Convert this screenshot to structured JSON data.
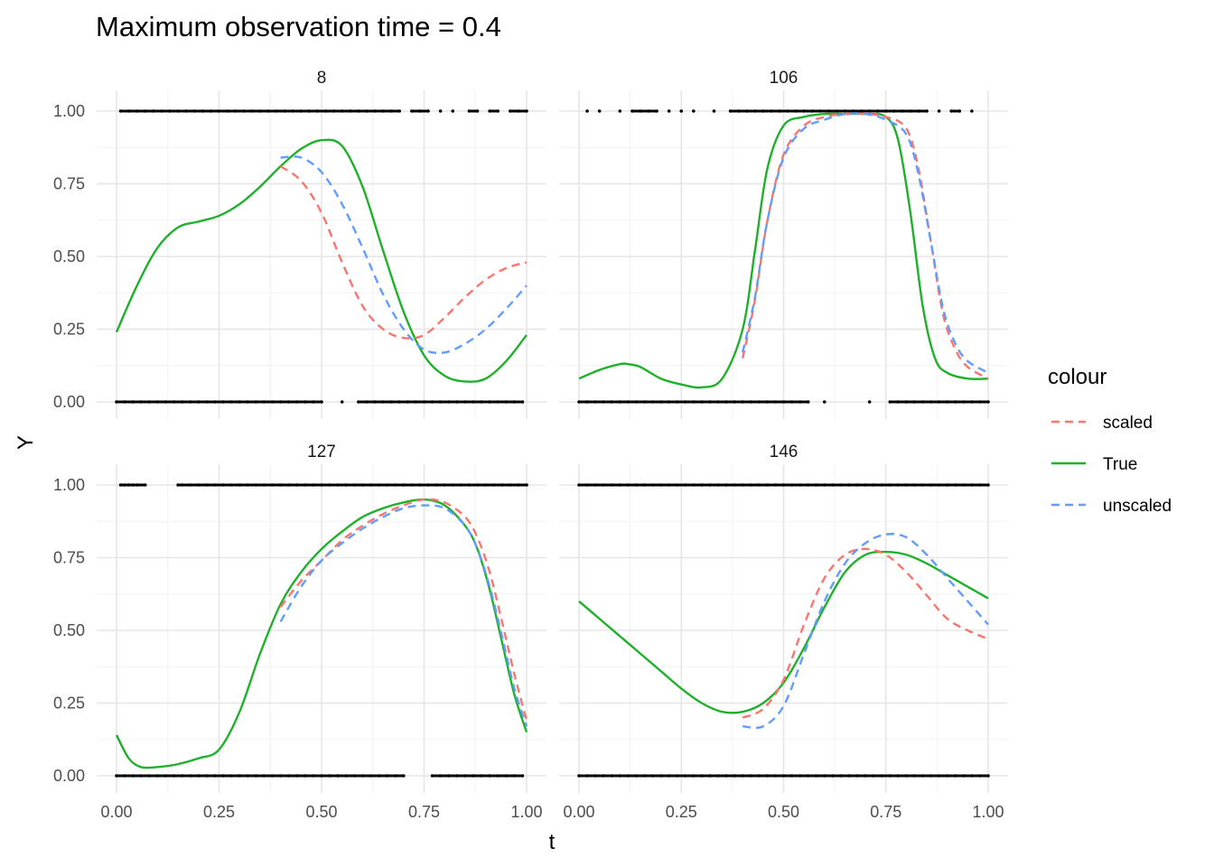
{
  "chart_data": {
    "type": "line",
    "title": "Maximum observation time = 0.4",
    "xlabel": "t",
    "ylabel": "Y",
    "xlim": [
      0,
      1
    ],
    "ylim": [
      0,
      1
    ],
    "x_ticks": [
      "0.00",
      "0.25",
      "0.50",
      "0.75",
      "1.00"
    ],
    "y_ticks": [
      "0.00",
      "0.25",
      "0.50",
      "0.75",
      "1.00"
    ],
    "grid": true,
    "legend": {
      "title": "colour",
      "position": "right",
      "items": [
        {
          "label": "scaled",
          "color": "#F8766D",
          "dash": "dashed"
        },
        {
          "label": "True",
          "color": "#1FB02C",
          "dash": "solid"
        },
        {
          "label": "unscaled",
          "color": "#619CFF",
          "dash": "dashed"
        }
      ]
    },
    "panels": [
      {
        "label": "8",
        "series": [
          {
            "name": "True",
            "x": [
              0,
              0.05,
              0.1,
              0.15,
              0.2,
              0.25,
              0.3,
              0.35,
              0.4,
              0.45,
              0.5,
              0.55,
              0.6,
              0.65,
              0.7,
              0.75,
              0.8,
              0.85,
              0.9,
              0.95,
              1.0
            ],
            "y": [
              0.24,
              0.4,
              0.53,
              0.6,
              0.62,
              0.64,
              0.68,
              0.74,
              0.81,
              0.87,
              0.9,
              0.88,
              0.74,
              0.52,
              0.31,
              0.16,
              0.09,
              0.07,
              0.08,
              0.14,
              0.23
            ]
          },
          {
            "name": "scaled",
            "x": [
              0.4,
              0.45,
              0.5,
              0.55,
              0.6,
              0.65,
              0.7,
              0.75,
              0.8,
              0.85,
              0.9,
              0.95,
              1.0
            ],
            "y": [
              0.81,
              0.76,
              0.65,
              0.48,
              0.33,
              0.25,
              0.22,
              0.23,
              0.29,
              0.36,
              0.42,
              0.46,
              0.48
            ]
          },
          {
            "name": "unscaled",
            "x": [
              0.4,
              0.45,
              0.5,
              0.55,
              0.6,
              0.65,
              0.7,
              0.75,
              0.8,
              0.85,
              0.9,
              0.95,
              1.0
            ],
            "y": [
              0.84,
              0.84,
              0.79,
              0.68,
              0.53,
              0.37,
              0.25,
              0.18,
              0.17,
              0.2,
              0.25,
              0.32,
              0.4
            ]
          }
        ],
        "points_y1": [
          0.01,
          0.03,
          0.05,
          0.07,
          0.09,
          0.11,
          0.13,
          0.15,
          0.17,
          0.19,
          0.21,
          0.23,
          0.25,
          0.27,
          0.29,
          0.31,
          0.33,
          0.35,
          0.37,
          0.39,
          0.41,
          0.43,
          0.45,
          0.47,
          0.49,
          0.51,
          0.53,
          0.55,
          0.57,
          0.59,
          0.61,
          0.63,
          0.65,
          0.67,
          0.69,
          0.72,
          0.74,
          0.76,
          0.79,
          0.82,
          0.86,
          0.88,
          0.91,
          0.93,
          0.96,
          0.98,
          1.0
        ],
        "points_y0": [
          0.0,
          0.02,
          0.04,
          0.06,
          0.08,
          0.1,
          0.12,
          0.14,
          0.16,
          0.18,
          0.2,
          0.22,
          0.24,
          0.26,
          0.28,
          0.3,
          0.32,
          0.34,
          0.36,
          0.38,
          0.4,
          0.42,
          0.44,
          0.46,
          0.48,
          0.5,
          0.55,
          0.59,
          0.61,
          0.63,
          0.65,
          0.67,
          0.69,
          0.71,
          0.73,
          0.75,
          0.77,
          0.79,
          0.81,
          0.83,
          0.85,
          0.87,
          0.89,
          0.91,
          0.93,
          0.95,
          0.97,
          0.99
        ]
      },
      {
        "label": "106",
        "series": [
          {
            "name": "True",
            "x": [
              0,
              0.05,
              0.1,
              0.12,
              0.15,
              0.2,
              0.25,
              0.3,
              0.35,
              0.4,
              0.43,
              0.46,
              0.5,
              0.55,
              0.6,
              0.65,
              0.7,
              0.75,
              0.78,
              0.81,
              0.84,
              0.87,
              0.9,
              0.95,
              1.0
            ],
            "y": [
              0.08,
              0.11,
              0.13,
              0.13,
              0.12,
              0.08,
              0.06,
              0.05,
              0.08,
              0.25,
              0.52,
              0.8,
              0.95,
              0.98,
              0.99,
              0.99,
              0.99,
              0.98,
              0.9,
              0.65,
              0.33,
              0.15,
              0.1,
              0.08,
              0.08
            ]
          },
          {
            "name": "scaled",
            "x": [
              0.4,
              0.43,
              0.46,
              0.5,
              0.55,
              0.6,
              0.65,
              0.7,
              0.75,
              0.8,
              0.83,
              0.86,
              0.89,
              0.92,
              0.95,
              1.0
            ],
            "y": [
              0.15,
              0.35,
              0.62,
              0.85,
              0.95,
              0.98,
              0.99,
              0.99,
              0.98,
              0.94,
              0.8,
              0.55,
              0.3,
              0.18,
              0.12,
              0.08
            ]
          },
          {
            "name": "unscaled",
            "x": [
              0.4,
              0.43,
              0.46,
              0.5,
              0.55,
              0.6,
              0.65,
              0.7,
              0.75,
              0.8,
              0.83,
              0.86,
              0.89,
              0.92,
              0.95,
              1.0
            ],
            "y": [
              0.17,
              0.36,
              0.62,
              0.84,
              0.94,
              0.97,
              0.99,
              0.99,
              0.97,
              0.92,
              0.78,
              0.55,
              0.32,
              0.2,
              0.14,
              0.1
            ]
          }
        ],
        "points_y1": [
          0.02,
          0.05,
          0.1,
          0.13,
          0.15,
          0.17,
          0.19,
          0.22,
          0.25,
          0.28,
          0.33,
          0.37,
          0.39,
          0.41,
          0.43,
          0.45,
          0.47,
          0.49,
          0.51,
          0.53,
          0.55,
          0.57,
          0.59,
          0.61,
          0.63,
          0.65,
          0.67,
          0.69,
          0.71,
          0.73,
          0.75,
          0.77,
          0.79,
          0.81,
          0.83,
          0.85,
          0.88,
          0.91,
          0.93,
          0.96
        ],
        "points_y0": [
          0.0,
          0.02,
          0.04,
          0.06,
          0.08,
          0.1,
          0.12,
          0.14,
          0.16,
          0.18,
          0.2,
          0.22,
          0.24,
          0.26,
          0.28,
          0.3,
          0.32,
          0.34,
          0.36,
          0.38,
          0.4,
          0.42,
          0.44,
          0.46,
          0.48,
          0.5,
          0.52,
          0.54,
          0.56,
          0.6,
          0.71,
          0.76,
          0.78,
          0.8,
          0.82,
          0.84,
          0.86,
          0.88,
          0.9,
          0.92,
          0.94,
          0.96,
          0.98,
          1.0
        ]
      },
      {
        "label": "127",
        "series": [
          {
            "name": "True",
            "x": [
              0,
              0.03,
              0.06,
              0.1,
              0.15,
              0.2,
              0.25,
              0.3,
              0.35,
              0.4,
              0.45,
              0.5,
              0.55,
              0.6,
              0.65,
              0.7,
              0.75,
              0.8,
              0.85,
              0.88,
              0.91,
              0.94,
              0.97,
              1.0
            ],
            "y": [
              0.14,
              0.06,
              0.03,
              0.03,
              0.04,
              0.06,
              0.09,
              0.22,
              0.42,
              0.59,
              0.7,
              0.78,
              0.84,
              0.89,
              0.92,
              0.94,
              0.95,
              0.93,
              0.86,
              0.78,
              0.64,
              0.46,
              0.28,
              0.15
            ]
          },
          {
            "name": "scaled",
            "x": [
              0.4,
              0.45,
              0.5,
              0.55,
              0.6,
              0.65,
              0.7,
              0.75,
              0.8,
              0.85,
              0.88,
              0.91,
              0.94,
              0.97,
              1.0
            ],
            "y": [
              0.58,
              0.67,
              0.74,
              0.81,
              0.86,
              0.9,
              0.93,
              0.95,
              0.94,
              0.89,
              0.82,
              0.7,
              0.53,
              0.35,
              0.19
            ]
          },
          {
            "name": "unscaled",
            "x": [
              0.4,
              0.45,
              0.5,
              0.55,
              0.6,
              0.65,
              0.7,
              0.75,
              0.8,
              0.85,
              0.88,
              0.91,
              0.94,
              0.97,
              1.0
            ],
            "y": [
              0.53,
              0.65,
              0.74,
              0.8,
              0.85,
              0.89,
              0.92,
              0.93,
              0.92,
              0.86,
              0.78,
              0.65,
              0.48,
              0.3,
              0.17
            ]
          }
        ],
        "points_y1": [
          0.01,
          0.02,
          0.03,
          0.04,
          0.05,
          0.07,
          0.15,
          0.16,
          0.18,
          0.2,
          0.22,
          0.24,
          0.26,
          0.28,
          0.3,
          0.32,
          0.34,
          0.36,
          0.38,
          0.4,
          0.42,
          0.44,
          0.46,
          0.48,
          0.5,
          0.52,
          0.54,
          0.56,
          0.58,
          0.6,
          0.62,
          0.64,
          0.66,
          0.68,
          0.7,
          0.72,
          0.74,
          0.76,
          0.78,
          0.8,
          0.82,
          0.84,
          0.86,
          0.88,
          0.9,
          0.92,
          0.94,
          0.96,
          0.98,
          1.0
        ],
        "points_y0": [
          0.0,
          0.02,
          0.04,
          0.06,
          0.08,
          0.1,
          0.12,
          0.14,
          0.16,
          0.18,
          0.2,
          0.22,
          0.24,
          0.26,
          0.28,
          0.3,
          0.32,
          0.34,
          0.36,
          0.38,
          0.4,
          0.42,
          0.44,
          0.46,
          0.48,
          0.5,
          0.52,
          0.54,
          0.56,
          0.58,
          0.6,
          0.62,
          0.64,
          0.66,
          0.68,
          0.7,
          0.77,
          0.79,
          0.81,
          0.83,
          0.85,
          0.87,
          0.89,
          0.91,
          0.93,
          0.95,
          0.97,
          0.99
        ]
      },
      {
        "label": "146",
        "series": [
          {
            "name": "True",
            "x": [
              0,
              0.05,
              0.1,
              0.15,
              0.2,
              0.25,
              0.3,
              0.35,
              0.4,
              0.45,
              0.5,
              0.55,
              0.6,
              0.65,
              0.7,
              0.75,
              0.8,
              0.85,
              0.9,
              0.95,
              1.0
            ],
            "y": [
              0.6,
              0.54,
              0.48,
              0.42,
              0.36,
              0.3,
              0.25,
              0.22,
              0.22,
              0.25,
              0.32,
              0.44,
              0.58,
              0.7,
              0.76,
              0.77,
              0.76,
              0.73,
              0.69,
              0.65,
              0.61
            ]
          },
          {
            "name": "scaled",
            "x": [
              0.4,
              0.45,
              0.5,
              0.55,
              0.6,
              0.65,
              0.7,
              0.75,
              0.8,
              0.85,
              0.9,
              0.95,
              1.0
            ],
            "y": [
              0.2,
              0.23,
              0.33,
              0.52,
              0.68,
              0.76,
              0.78,
              0.76,
              0.7,
              0.62,
              0.54,
              0.5,
              0.47
            ]
          },
          {
            "name": "unscaled",
            "x": [
              0.4,
              0.45,
              0.5,
              0.55,
              0.6,
              0.65,
              0.7,
              0.75,
              0.8,
              0.85,
              0.9,
              0.95,
              1.0
            ],
            "y": [
              0.17,
              0.17,
              0.24,
              0.42,
              0.6,
              0.73,
              0.8,
              0.83,
              0.82,
              0.76,
              0.68,
              0.6,
              0.52
            ]
          }
        ],
        "points_y1": [
          0.0,
          0.02,
          0.04,
          0.06,
          0.08,
          0.1,
          0.12,
          0.14,
          0.16,
          0.18,
          0.2,
          0.22,
          0.24,
          0.26,
          0.28,
          0.3,
          0.32,
          0.34,
          0.36,
          0.38,
          0.4,
          0.42,
          0.44,
          0.46,
          0.48,
          0.5,
          0.52,
          0.54,
          0.56,
          0.58,
          0.6,
          0.62,
          0.64,
          0.66,
          0.68,
          0.7,
          0.72,
          0.74,
          0.76,
          0.78,
          0.8,
          0.82,
          0.84,
          0.86,
          0.88,
          0.9,
          0.92,
          0.94,
          0.96,
          0.98,
          1.0
        ],
        "points_y0": [
          0.0,
          0.02,
          0.04,
          0.06,
          0.08,
          0.1,
          0.12,
          0.14,
          0.16,
          0.18,
          0.2,
          0.22,
          0.24,
          0.26,
          0.28,
          0.3,
          0.32,
          0.34,
          0.36,
          0.38,
          0.4,
          0.42,
          0.44,
          0.46,
          0.48,
          0.5,
          0.52,
          0.54,
          0.56,
          0.58,
          0.6,
          0.62,
          0.64,
          0.66,
          0.68,
          0.7,
          0.72,
          0.74,
          0.76,
          0.78,
          0.8,
          0.82,
          0.84,
          0.86,
          0.88,
          0.9,
          0.92,
          0.94,
          0.96,
          0.98,
          1.0
        ]
      }
    ]
  }
}
